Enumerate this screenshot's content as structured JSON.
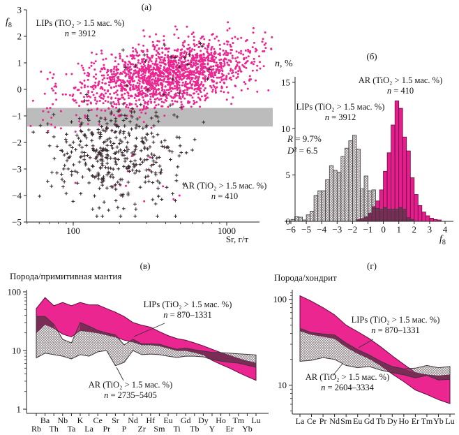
{
  "colors": {
    "magenta": "#EC2690",
    "magenta_bar": "#E61D8C",
    "dark_overlap": "#8E1C5A",
    "band_gray": "#BCBCBC",
    "cross": "#3A2A31",
    "band_edge": "#5C0E3C",
    "hatch_line": "#57484F",
    "hatch_edge": "#3F353C",
    "axis": "#222222"
  },
  "chart_data": [
    {
      "panel_tag": "(a)",
      "type": "scatter",
      "x_scale": "log",
      "xlim": [
        50,
        2000
      ],
      "ylim": [
        -5,
        3
      ],
      "x_ticks": [
        100,
        1000
      ],
      "x_minor_ticks": [
        50,
        60,
        70,
        80,
        90,
        200,
        300,
        400,
        500,
        600,
        700,
        800,
        900
      ],
      "y_ticks": [
        3,
        2,
        1,
        0,
        -1,
        -2,
        -3,
        -4,
        -5
      ],
      "xlabel": "Sr, г/т",
      "ylabel_var": "f",
      "ylabel_sub": "8",
      "gray_band_f8": [
        -0.7,
        -1.4
      ],
      "series": [
        {
          "name": "LIPs (TiO₂ > 1.5 мас. %)",
          "n": 3912,
          "marker": "dot",
          "cluster": {
            "log_sr_mean": 2.62,
            "log_sr_sd": 0.27,
            "f8_mean": 0.55,
            "f8_sd": 0.62,
            "slope": 0.95,
            "f8_range": [
              -2.6,
              2.95
            ]
          }
        },
        {
          "name": "AR (TiO₂ > 1.5 мас. %)",
          "n": 410,
          "marker": "cross",
          "cluster": {
            "log_sr_mean": 2.28,
            "log_sr_sd": 0.2,
            "f8_mean": -2.55,
            "f8_sd": 0.95,
            "slope": 0,
            "f8_range": [
              -4.78,
              -0.2
            ]
          }
        }
      ],
      "annotations": {
        "lips": {
          "line1": "LIPs (TiO₂ > 1.5 мас. %)",
          "n_var": "n",
          "n_rest": " = 3912"
        },
        "ar": {
          "line1": "AR (TiO₂ > 1.5 мас. %)",
          "n_var": "n",
          "n_rest": " = 410"
        }
      }
    },
    {
      "panel_tag": "(б)",
      "type": "histogram",
      "xlim": [
        -6,
        4
      ],
      "ylim": [
        0,
        15
      ],
      "x_ticks": [
        -6,
        -5,
        -4,
        -3,
        -2,
        -1,
        0,
        1,
        2,
        3,
        4
      ],
      "y_ticks": [
        0,
        5,
        10,
        15
      ],
      "xlabel_var": "f",
      "xlabel_sub": "8",
      "ylabel_var": "n",
      "ylabel_rest": ", %",
      "bin_width": 0.25,
      "series": [
        {
          "name": "AR (TiO₂ > 1.5 мас. %)",
          "style": "hatched",
          "bin_start": -6,
          "values": [
            0.2,
            0.5,
            0.45,
            0.15,
            0.7,
            1.1,
            2.8,
            3.3,
            3.3,
            4.5,
            6,
            5.5,
            5.3,
            7,
            7.9,
            8.7,
            9.3,
            7.8,
            3.5,
            4.9,
            3.3,
            3.4,
            1.4,
            1.3,
            1.5,
            1.3,
            1.3,
            1.3,
            1.5,
            1.3,
            0.4,
            0.2
          ]
        },
        {
          "name": "LIPs (TiO₂ > 1.5 мас. %)",
          "style": "magenta",
          "bin_start": -1.75,
          "values": [
            0.2,
            0.3,
            0.5,
            0.9,
            1.6,
            2.2,
            3.4,
            5.4,
            7.4,
            10.4,
            13,
            12.2,
            9.1,
            7.6,
            4.7,
            2.9,
            1.7,
            1,
            0.6,
            0.35,
            0.2,
            0.15
          ]
        }
      ],
      "annotations": {
        "ar": {
          "line1": "AR (TiO₂ > 1.5 мас. %)",
          "n_var": "n",
          "n_rest": " = 410"
        },
        "lips": {
          "line1": "LIPs (TiO₂ > 1.5 мас. %)",
          "n_var": "n",
          "n_rest": " = 3912"
        },
        "stats": {
          "r_var": "R",
          "r_rest": " = 9.7%",
          "d_var": "D",
          "d_rest": "² = 6.5"
        }
      }
    },
    {
      "panel_tag": "(в)",
      "type": "band",
      "title": "Порода/примитивная мантия",
      "ylim": [
        1,
        108
      ],
      "y_ticks": [
        1,
        10,
        100
      ],
      "y_scale": "log",
      "categories": [
        "Rb",
        "Ba",
        "Th",
        "Nb",
        "Ta",
        "K",
        "La",
        "Ce",
        "Pr",
        "Sr",
        "P",
        "Nd",
        "Zr",
        "Hf",
        "Sm",
        "Eu",
        "Ti",
        "Gd",
        "Tb",
        "Dy",
        "Y",
        "Ho",
        "Er",
        "Tm",
        "Yb",
        "Lu"
      ],
      "series": [
        {
          "name": "LIPs (TiO₂ > 1.5 мас. %)",
          "style": "magenta",
          "n": "870–1331",
          "top": [
            52,
            80,
            58,
            66,
            58,
            66,
            60,
            60,
            52,
            45,
            38,
            30,
            27,
            25,
            21,
            18,
            16,
            15,
            13.5,
            12,
            10.5,
            9.2,
            8.2,
            7.3,
            6.6,
            6.1
          ],
          "bottom": [
            20,
            28,
            24,
            19,
            17,
            22,
            21,
            20,
            18.5,
            17,
            15,
            14,
            12.5,
            12.5,
            12,
            11,
            10,
            10,
            9.3,
            8.5,
            6.8,
            5.8,
            5,
            4.2,
            3.6,
            3.1
          ]
        },
        {
          "name": "AR (TiO₂ > 1.5 мас. %)",
          "style": "hatched",
          "n": "2735–5405",
          "top": [
            38,
            38,
            28,
            15.5,
            13.5,
            30,
            26,
            22,
            20,
            18.5,
            12.5,
            15.5,
            13,
            13,
            12.8,
            11.5,
            10.5,
            11,
            10.3,
            9.8,
            9.3,
            9.2,
            9,
            8.8,
            8.6,
            8.4
          ],
          "bottom": [
            7.5,
            9,
            8.5,
            8,
            7.2,
            8.5,
            8,
            9.5,
            10,
            5.5,
            6.3,
            10,
            8.5,
            8.7,
            8.5,
            8,
            7.6,
            8,
            8,
            7.8,
            7,
            6.6,
            6.3,
            6.1,
            5.6,
            5.2
          ]
        }
      ],
      "annotations": {
        "lips": {
          "line1": "LIPs (TiO₂ > 1.5 мас. %)",
          "n_var": "n",
          "n_rest": " = 870–1331"
        },
        "ar": {
          "line1": "AR (TiO₂ > 1.5 мас. %)",
          "n_var": "n",
          "n_rest": " = 2735–5405"
        }
      }
    },
    {
      "panel_tag": "(г)",
      "type": "band",
      "title": "Порода/хондрит",
      "ylim": [
        4.6,
        129
      ],
      "y_ticks": [
        10,
        100
      ],
      "y_scale": "log",
      "categories": [
        "La",
        "Ce",
        "Pr",
        "Nd",
        "Sm",
        "Eu",
        "Gd",
        "Tb",
        "Dy",
        "Ho",
        "Er",
        "Tm",
        "Yb",
        "Lu"
      ],
      "series": [
        {
          "name": "LIPs (TiO₂ > 1.5 мас. %)",
          "style": "magenta",
          "n": "870–1331",
          "top": [
            110,
            95,
            80,
            66,
            50,
            42,
            35,
            28,
            22,
            17.5,
            14,
            13.2,
            12.8,
            13.2
          ],
          "bottom": [
            43,
            39,
            37,
            35,
            28,
            23.5,
            20.5,
            17,
            13.5,
            11,
            8.8,
            7.8,
            6.8,
            6.1
          ]
        },
        {
          "name": "AR (TiO₂ > 1.5 мас. %)",
          "style": "hatched",
          "n": "2604–3334",
          "top": [
            46,
            41,
            39.5,
            38.5,
            31,
            26,
            22.5,
            19,
            16.5,
            15.5,
            15.8,
            17,
            16,
            16.5
          ],
          "bottom": [
            19,
            19.5,
            21,
            20,
            17,
            16,
            16.5,
            15,
            14,
            13.2,
            12.2,
            13,
            11.5,
            11.7
          ]
        }
      ],
      "annotations": {
        "lips": {
          "line1": "LIPs (TiO₂ > 1.5 мас. %)",
          "n_var": "n",
          "n_rest": " = 870–1331"
        },
        "ar": {
          "line1": "AR (TiO₂ > 1.5 мас. %)",
          "n_var": "n",
          "n_rest": " = 2604–3334"
        }
      }
    }
  ]
}
